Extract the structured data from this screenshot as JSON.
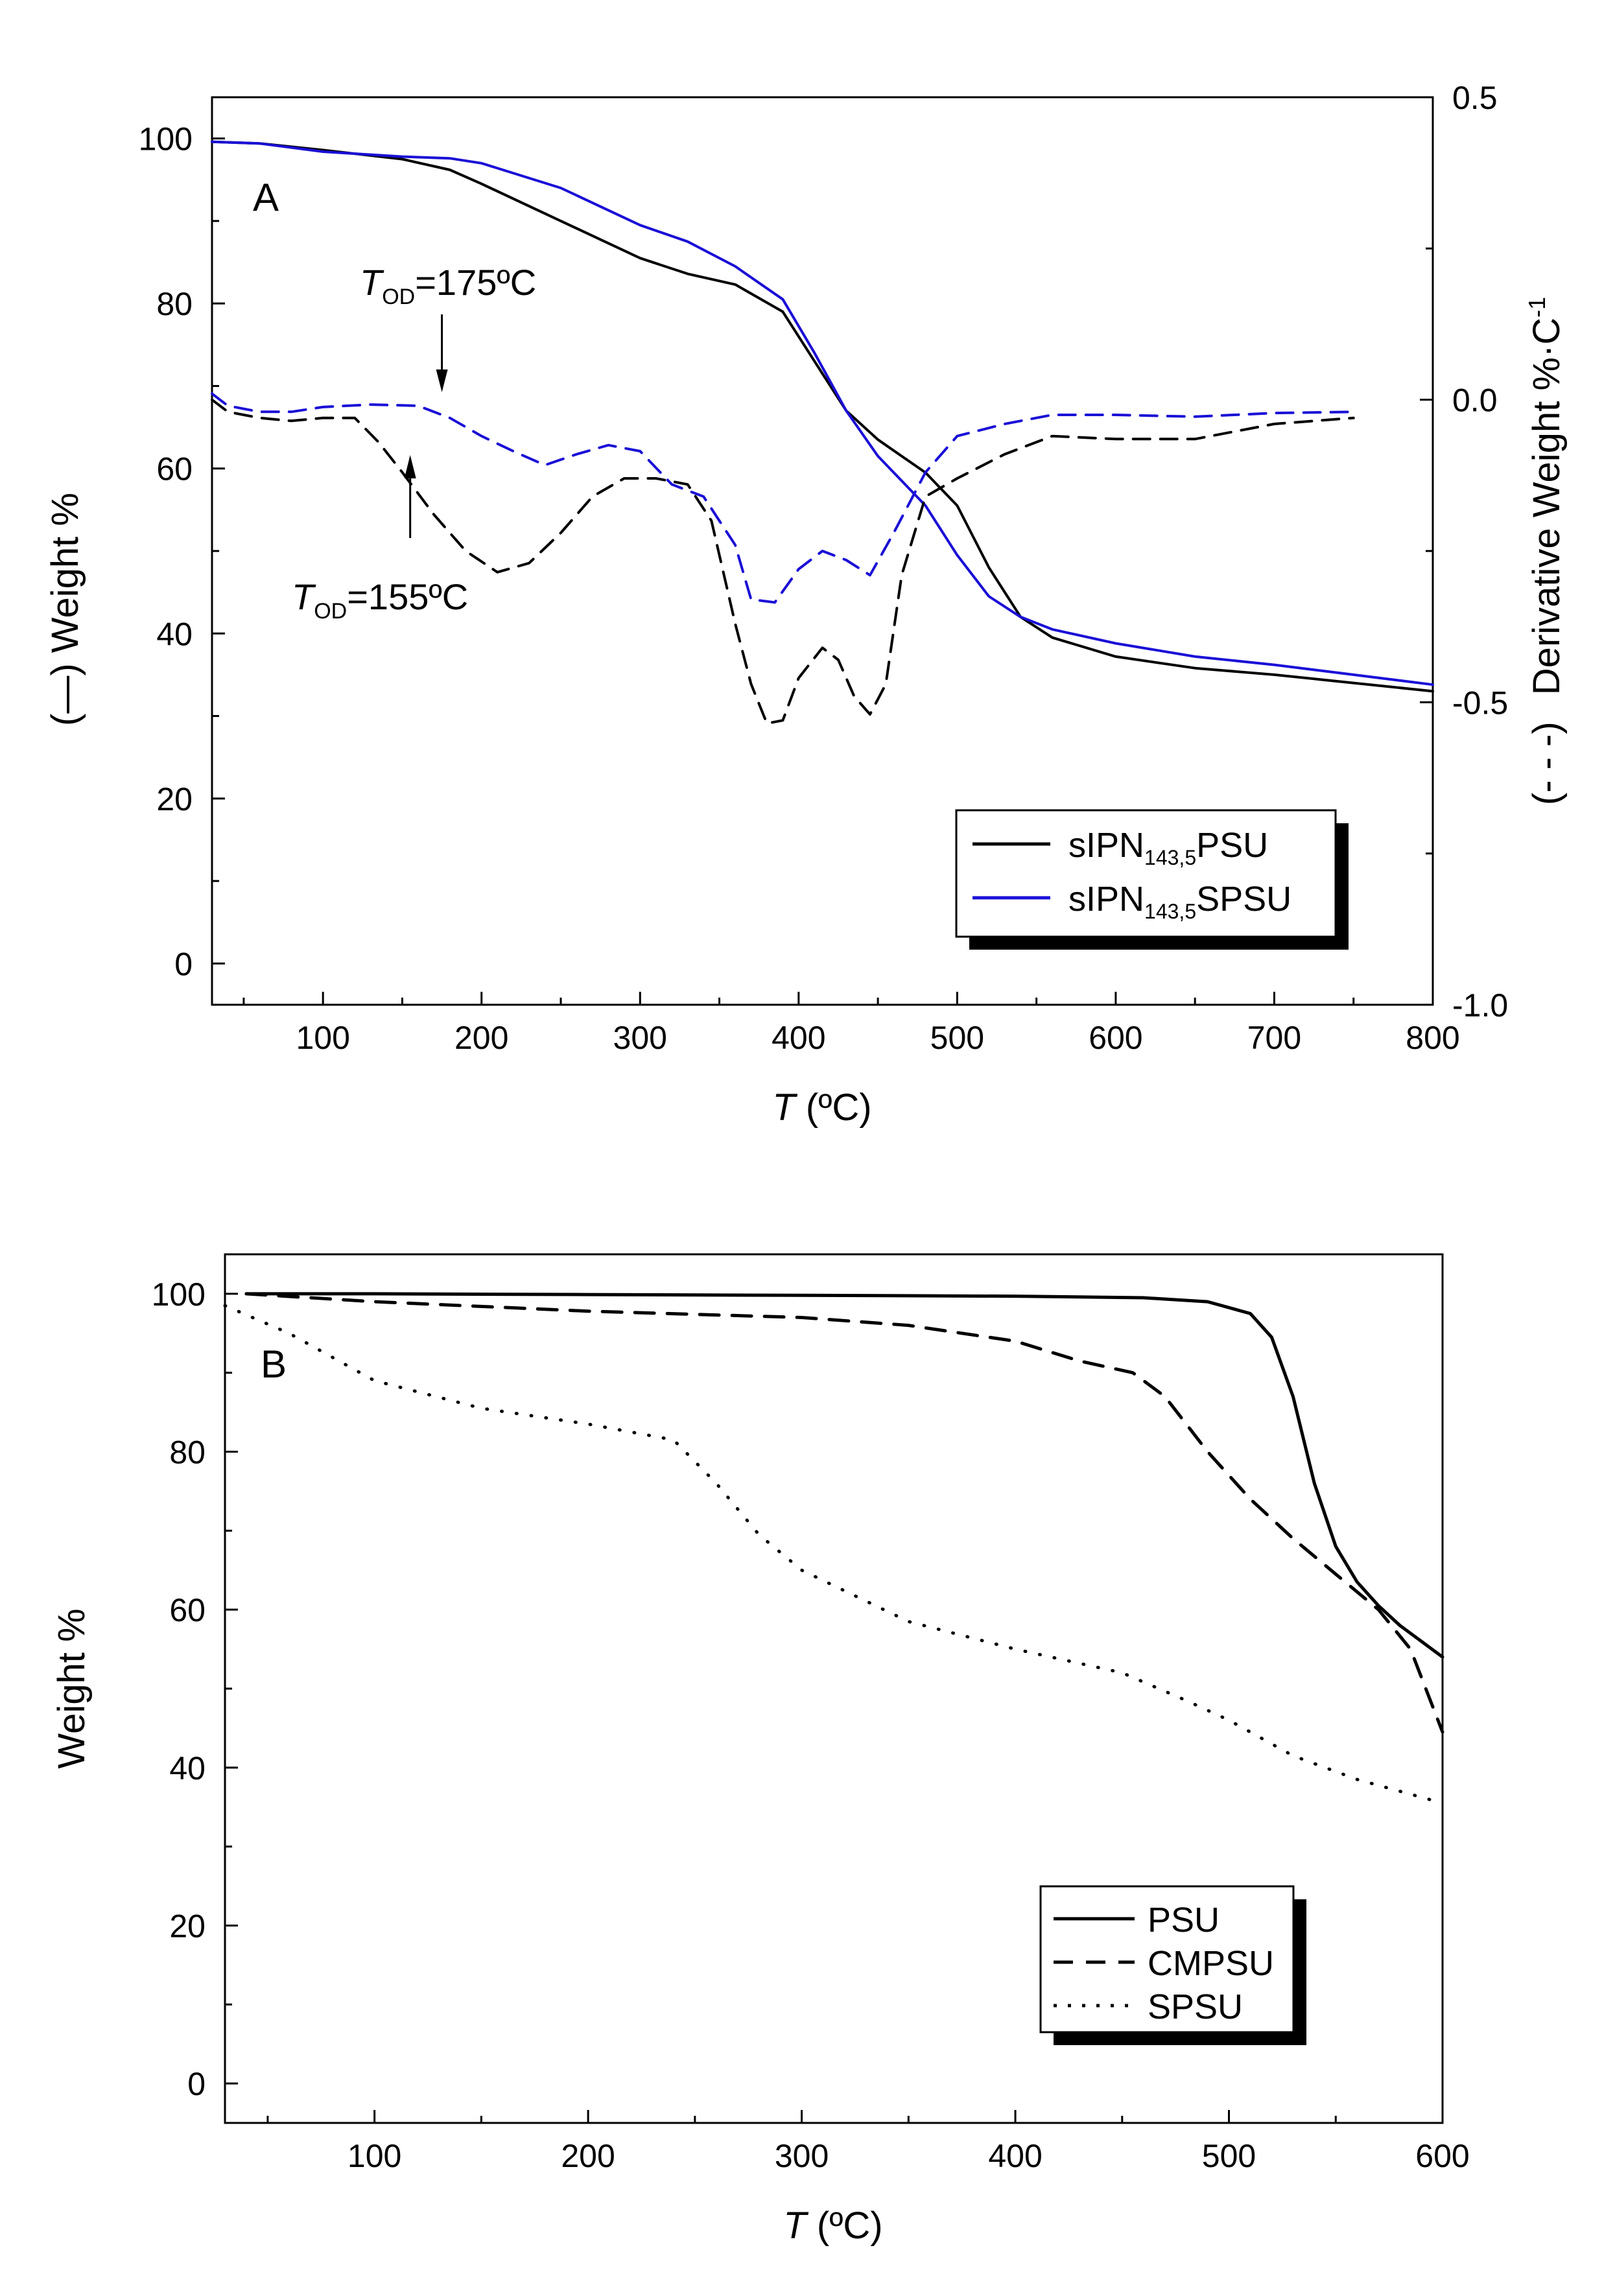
{
  "chart_data": [
    {
      "type": "line",
      "panel_label": "A",
      "xlabel_italic": "T",
      "xlabel_rest": " (ºC)",
      "ylabel_left": "Weight %",
      "ylabel_left_marker": "(—)",
      "ylabel_right": "Derivative Weight %·C",
      "ylabel_right_sup": "-1",
      "ylabel_right_marker": "(- - -)",
      "xlim": [
        30,
        800
      ],
      "ylim_left": [
        -5,
        105
      ],
      "ylim_right": [
        -1.0,
        0.5
      ],
      "xticks": [
        "100",
        "200",
        "300",
        "400",
        "500",
        "600",
        "700",
        "800"
      ],
      "yticks_left": [
        "0",
        "20",
        "40",
        "60",
        "80",
        "100"
      ],
      "yticks_right": [
        "0.5",
        "0.0",
        "-0.5",
        "-1.0"
      ],
      "series": [
        {
          "name": "sIPN143,5PSU weight",
          "axis": "left",
          "color": "#000000",
          "dash": "solid",
          "x": [
            30,
            60,
            100,
            150,
            180,
            200,
            250,
            300,
            330,
            360,
            390,
            410,
            430,
            450,
            480,
            500,
            520,
            540,
            560,
            600,
            650,
            700,
            750,
            800
          ],
          "y": [
            99.6,
            99.4,
            98.6,
            97.5,
            96.2,
            94.5,
            90,
            85.5,
            83.6,
            82.3,
            79,
            73,
            67,
            63.5,
            59.5,
            55.5,
            48,
            42,
            39.5,
            37.2,
            35.8,
            35,
            34,
            33
          ]
        },
        {
          "name": "sIPN143,5SPSU weight",
          "axis": "left",
          "color": "#1a0fd6",
          "dash": "solid",
          "x": [
            30,
            60,
            100,
            150,
            180,
            200,
            250,
            300,
            330,
            360,
            390,
            410,
            430,
            450,
            480,
            500,
            520,
            540,
            560,
            600,
            650,
            700,
            750,
            800
          ],
          "y": [
            99.6,
            99.4,
            98.4,
            97.8,
            97.6,
            97,
            94,
            89.5,
            87.5,
            84.5,
            80.5,
            74,
            67,
            61.5,
            55.5,
            49.5,
            44.5,
            42,
            40.5,
            38.8,
            37.2,
            36.2,
            35,
            33.8
          ]
        },
        {
          "name": "sIPN143,5PSU derivative",
          "axis": "right",
          "color": "#000000",
          "dash": "dashed",
          "x": [
            30,
            40,
            60,
            80,
            100,
            120,
            135,
            150,
            170,
            190,
            210,
            230,
            250,
            270,
            290,
            310,
            330,
            345,
            360,
            370,
            380,
            390,
            400,
            415,
            425,
            435,
            445,
            455,
            465,
            480,
            500,
            530,
            560,
            600,
            650,
            700,
            750
          ],
          "y": [
            0.0,
            -0.02,
            -0.03,
            -0.035,
            -0.03,
            -0.03,
            -0.07,
            -0.12,
            -0.19,
            -0.25,
            -0.285,
            -0.27,
            -0.22,
            -0.16,
            -0.13,
            -0.13,
            -0.14,
            -0.2,
            -0.37,
            -0.47,
            -0.535,
            -0.53,
            -0.46,
            -0.41,
            -0.43,
            -0.49,
            -0.52,
            -0.47,
            -0.29,
            -0.16,
            -0.13,
            -0.09,
            -0.06,
            -0.065,
            -0.065,
            -0.04,
            -0.03
          ]
        },
        {
          "name": "sIPN143,5SPSU derivative",
          "axis": "right",
          "color": "#1a0fd6",
          "dash": "dashed",
          "x": [
            30,
            40,
            60,
            80,
            100,
            130,
            160,
            180,
            200,
            220,
            240,
            260,
            280,
            300,
            320,
            340,
            360,
            370,
            385,
            400,
            415,
            430,
            445,
            460,
            480,
            500,
            530,
            560,
            600,
            650,
            700,
            750
          ],
          "y": [
            0.01,
            -0.01,
            -0.02,
            -0.02,
            -0.012,
            -0.008,
            -0.01,
            -0.03,
            -0.06,
            -0.085,
            -0.108,
            -0.09,
            -0.075,
            -0.085,
            -0.14,
            -0.16,
            -0.24,
            -0.33,
            -0.335,
            -0.28,
            -0.25,
            -0.265,
            -0.29,
            -0.22,
            -0.12,
            -0.06,
            -0.04,
            -0.025,
            -0.025,
            -0.028,
            -0.022,
            -0.02
          ]
        }
      ],
      "legend": {
        "position": "bottom-right",
        "entries": [
          {
            "prefix": "sIPN",
            "sub": "143,5",
            "suffix": "PSU",
            "color": "#000000"
          },
          {
            "prefix": "sIPN",
            "sub": "143,5",
            "suffix": "SPSU",
            "color": "#1a0fd6"
          }
        ]
      },
      "annotations": [
        {
          "italic": "T",
          "sub": "OD",
          "rest": "=175ºC",
          "arrow_at_x": 175,
          "arrow_direction": "down"
        },
        {
          "italic": "T",
          "sub": "OD",
          "rest": "=155ºC",
          "arrow_at_x": 155,
          "arrow_direction": "up"
        }
      ]
    },
    {
      "type": "line",
      "panel_label": "B",
      "xlabel_italic": "T",
      "xlabel_rest": " (ºC)",
      "ylabel_left": "Weight %",
      "xlim": [
        30,
        600
      ],
      "ylim_left": [
        -5,
        105
      ],
      "xticks": [
        "100",
        "200",
        "300",
        "400",
        "500",
        "600"
      ],
      "yticks_left": [
        "0",
        "20",
        "40",
        "60",
        "80",
        "100"
      ],
      "series": [
        {
          "name": "PSU",
          "color": "#000000",
          "dash": "solid",
          "x": [
            40,
            100,
            200,
            300,
            400,
            460,
            490,
            510,
            520,
            530,
            540,
            550,
            560,
            570,
            580,
            590,
            600
          ],
          "y": [
            100,
            100,
            99.9,
            99.8,
            99.7,
            99.5,
            99,
            97.5,
            94.5,
            87,
            76,
            68,
            63.5,
            60.5,
            58,
            56,
            54
          ]
        },
        {
          "name": "CMPSU",
          "color": "#000000",
          "dash": "dashed",
          "x": [
            40,
            100,
            200,
            300,
            350,
            400,
            430,
            455,
            470,
            490,
            510,
            530,
            550,
            570,
            585,
            600
          ],
          "y": [
            100,
            99,
            97.8,
            97,
            96,
            94,
            91.5,
            90,
            87,
            80,
            74,
            69,
            64.5,
            60,
            55,
            44.5
          ]
        },
        {
          "name": "SPSU",
          "color": "#000000",
          "dash": "dotted",
          "x": [
            30,
            60,
            100,
            150,
            200,
            240,
            260,
            280,
            300,
            350,
            400,
            450,
            480,
            500,
            530,
            560,
            600
          ],
          "y": [
            98.5,
            95,
            89,
            85.5,
            83.5,
            81.5,
            76,
            69.5,
            65,
            58.5,
            55,
            52,
            48.5,
            46,
            41.5,
            38.5,
            35.5
          ]
        }
      ],
      "legend": {
        "position": "bottom-right",
        "entries": [
          {
            "label": "PSU",
            "dash": "solid"
          },
          {
            "label": "CMPSU",
            "dash": "dashed"
          },
          {
            "label": "SPSU",
            "dash": "dotted"
          }
        ]
      }
    }
  ]
}
